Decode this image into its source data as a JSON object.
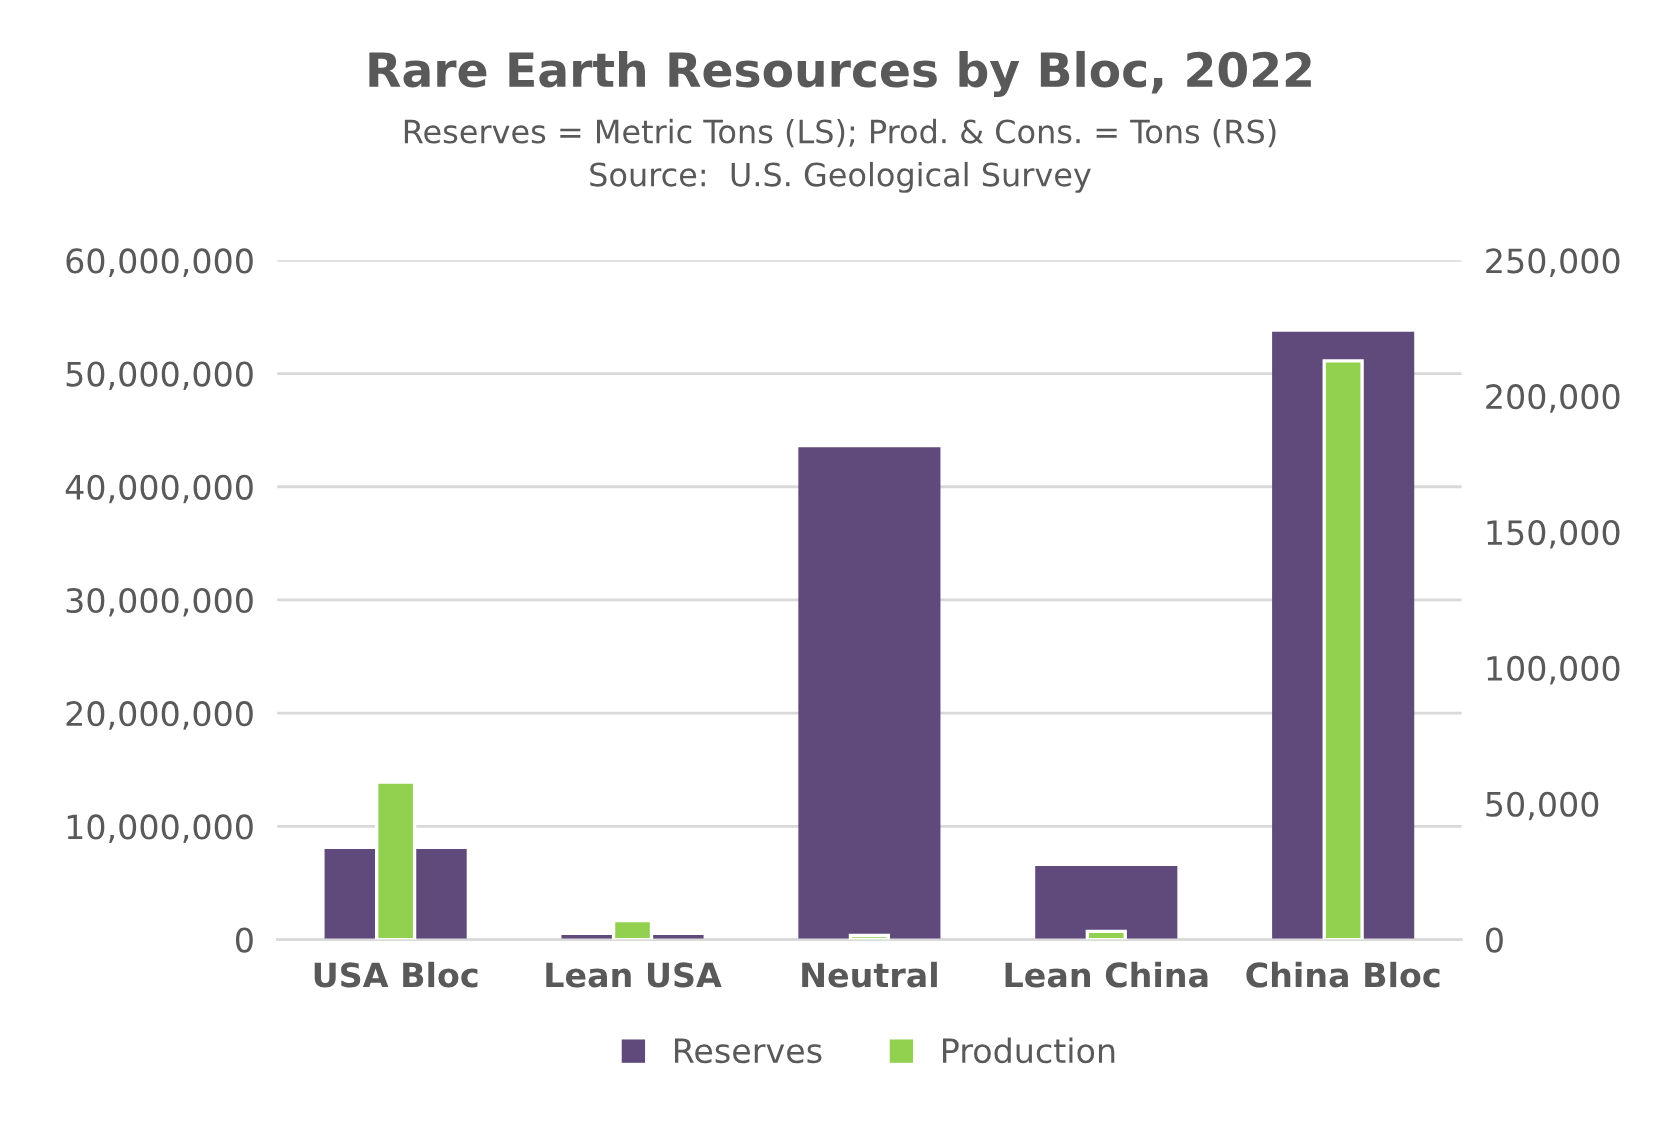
{
  "chart_data": {
    "type": "bar",
    "title": "Rare Earth Resources by Bloc, 2022",
    "subtitle": "Reserves = Metric Tons (LS); Prod. & Cons. = Tons (RS)\nSource:  U.S. Geological Survey",
    "categories": [
      "USA Bloc",
      "Lean USA",
      "Neutral",
      "Lean China",
      "China Bloc"
    ],
    "series": [
      {
        "name": "Reserves",
        "color": "#604a7b",
        "values": [
          8000000,
          400000,
          43500000,
          6500000,
          53700000
        ]
      },
      {
        "name": "Production",
        "color": "#92d050",
        "axis": "y2",
        "values": [
          58000,
          7000,
          1500,
          3000,
          213000
        ]
      }
    ],
    "ylim": [
      0,
      60000000
    ],
    "yticks": [
      {
        "value": 0,
        "label": "0"
      },
      {
        "value": 10000000,
        "label": "10,000,000"
      },
      {
        "value": 20000000,
        "label": "20,000,000"
      },
      {
        "value": 30000000,
        "label": "30,000,000"
      },
      {
        "value": 40000000,
        "label": "40,000,000"
      },
      {
        "value": 50000000,
        "label": "50,000,000"
      },
      {
        "value": 60000000,
        "label": "60,000,000"
      }
    ],
    "y2lim": [
      0,
      250000
    ],
    "y2ticks": [
      {
        "value": 0,
        "label": "0"
      },
      {
        "value": 50000,
        "label": "50,000"
      },
      {
        "value": 100000,
        "label": "100,000"
      },
      {
        "value": 150000,
        "label": "150,000"
      },
      {
        "value": 200000,
        "label": "200,000"
      },
      {
        "value": 250000,
        "label": "250,000"
      }
    ],
    "grid": "y",
    "legend": "bottom"
  }
}
